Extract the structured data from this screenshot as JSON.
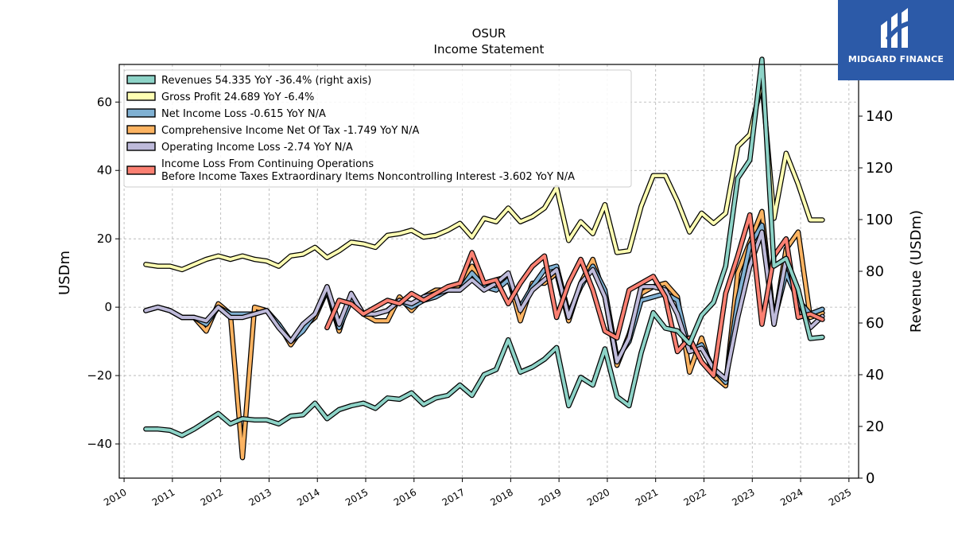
{
  "title": "OSUR",
  "subtitle": "Income Statement",
  "brand": {
    "name": "MIDGARD FINANCE",
    "logo_icon": "midgard-logo-icon",
    "color": "#2c5aa8"
  },
  "chart_data": {
    "type": "line",
    "ylabel": "USDm",
    "ylabel_right": "Revenue (USDm)",
    "xlim": [
      2009.9,
      2025.2
    ],
    "ylim": [
      -50,
      71
    ],
    "ylim_right": [
      0,
      160
    ],
    "x_ticks": [
      2010,
      2011,
      2012,
      2013,
      2014,
      2015,
      2016,
      2017,
      2018,
      2019,
      2020,
      2021,
      2022,
      2023,
      2024,
      2025
    ],
    "x_tick_labels": [
      "2010",
      "2011",
      "2012",
      "2013",
      "2014",
      "2015",
      "2016",
      "2017",
      "2018",
      "2019",
      "2020",
      "2021",
      "2022",
      "2023",
      "2024",
      "2025"
    ],
    "y_ticks": [
      -40,
      -20,
      0,
      20,
      40,
      60
    ],
    "y_tick_labels": [
      "−40",
      "−20",
      "0",
      "20",
      "40",
      "60"
    ],
    "y_ticks_right": [
      0,
      20,
      40,
      60,
      80,
      100,
      120,
      140
    ],
    "y_tick_labels_right": [
      "0",
      "20",
      "40",
      "60",
      "80",
      "100",
      "120",
      "140"
    ],
    "grid": true,
    "legend_position": "top-left",
    "x": [
      2010.45,
      2010.7,
      2010.95,
      2011.2,
      2011.45,
      2011.7,
      2011.95,
      2012.2,
      2012.45,
      2012.7,
      2012.95,
      2013.2,
      2013.45,
      2013.7,
      2013.95,
      2014.2,
      2014.45,
      2014.7,
      2014.95,
      2015.2,
      2015.45,
      2015.7,
      2015.95,
      2016.2,
      2016.45,
      2016.7,
      2016.95,
      2017.2,
      2017.45,
      2017.7,
      2017.95,
      2018.2,
      2018.45,
      2018.7,
      2018.95,
      2019.2,
      2019.45,
      2019.7,
      2019.95,
      2020.2,
      2020.45,
      2020.7,
      2020.95,
      2021.2,
      2021.45,
      2021.7,
      2021.95,
      2022.2,
      2022.45,
      2022.7,
      2022.95,
      2023.2,
      2023.45,
      2023.7,
      2023.95,
      2024.2,
      2024.45
    ],
    "series": [
      {
        "name": "Revenues  54.335 YoY -36.4% (right axis)",
        "axis": "right",
        "color": "#8dd3c7",
        "values": [
          19,
          19,
          18.5,
          16.5,
          19,
          22,
          25,
          21,
          23,
          22.5,
          22.5,
          21,
          24,
          24.5,
          29,
          23,
          26.5,
          28,
          29,
          27,
          31,
          30.5,
          33,
          28.5,
          31,
          32,
          36,
          32,
          40,
          42,
          53.5,
          41,
          43,
          46,
          50.5,
          28,
          39,
          36,
          50,
          31.5,
          28,
          48.5,
          64,
          58,
          57,
          52,
          63,
          68,
          82,
          116,
          123,
          162,
          82,
          85,
          73,
          54,
          54.5
        ]
      },
      {
        "name": "Gross Profit  24.689 YoY -6.4%",
        "axis": "left",
        "color": "#ffffb3",
        "values": [
          12.5,
          12,
          12,
          11,
          12.5,
          14,
          15,
          14,
          15,
          14,
          13.5,
          12,
          15,
          15.5,
          17.5,
          14.5,
          16.5,
          19,
          18.5,
          17.5,
          21,
          21.5,
          22.5,
          20.5,
          21,
          22.5,
          24.5,
          20.5,
          26,
          25,
          29,
          25,
          26.5,
          29,
          35,
          19.5,
          25,
          21.5,
          30,
          16,
          16.5,
          29.5,
          38.5,
          38.5,
          31,
          22,
          27.5,
          24.5,
          27.5,
          47,
          50.5,
          66,
          26,
          45,
          36,
          25.5,
          25.5
        ]
      },
      {
        "name": "Net Income Loss  -0.615 YoY N/A",
        "axis": "left",
        "color": "#80b1d3",
        "values": [
          -1,
          0,
          -1,
          -3,
          -3,
          -5,
          0,
          -2,
          -2,
          -2,
          -1,
          -5,
          -10,
          -7,
          -2,
          5,
          -6,
          2,
          -2,
          -2,
          -1,
          2,
          0,
          2,
          3,
          5,
          5,
          10,
          6,
          5,
          8,
          0,
          6,
          11,
          12,
          -2,
          6,
          12,
          5,
          -15,
          -10,
          2,
          3,
          4,
          2,
          -13,
          -11,
          -18,
          -22,
          2,
          18,
          24,
          -4,
          10,
          2,
          -2,
          -0.6
        ]
      },
      {
        "name": "Comprehensive Income Net Of Tax  -1.749 YoY N/A",
        "axis": "left",
        "color": "#fdb462",
        "values": [
          -1,
          0,
          -1,
          -3,
          -3,
          -7,
          1,
          -2,
          -44,
          0,
          -1,
          -5,
          -11,
          -6,
          -3,
          5,
          -7,
          4,
          -2,
          -4,
          -4,
          3,
          -1,
          3,
          5,
          5,
          6,
          12,
          6,
          8,
          9,
          -4,
          7,
          7,
          10,
          -4,
          7,
          14,
          3,
          -17,
          -8,
          4,
          6,
          7,
          3,
          -19,
          -9,
          -20,
          -23,
          10,
          19,
          28,
          -5,
          17,
          22,
          -3,
          -1.7
        ]
      },
      {
        "name": "Operating Income Loss  -2.74 YoY N/A",
        "axis": "left",
        "color": "#bebada",
        "values": [
          -1,
          0,
          -1,
          -3,
          -3,
          -4,
          0,
          -3,
          -3,
          -2,
          -1,
          -6,
          -10,
          -5,
          -2,
          6,
          -5,
          4,
          -2,
          -2,
          -1,
          2,
          1,
          3,
          4,
          5,
          5,
          8,
          5,
          7,
          10,
          -1,
          5,
          8,
          11,
          -3,
          7,
          11,
          3,
          -16,
          -9,
          6,
          6,
          5,
          -2,
          -13,
          -12,
          -18,
          -21,
          -3,
          12,
          22,
          -5,
          14,
          2,
          -6,
          -2.7
        ]
      },
      {
        "name": "Income Loss From Continuing Operations\nBefore Income Taxes Extraordinary Items Noncontrolling Interest  -3.602 YoY N/A",
        "axis": "left",
        "color": "#fb8072",
        "values": [
          null,
          null,
          null,
          null,
          null,
          null,
          null,
          null,
          null,
          null,
          null,
          null,
          null,
          null,
          null,
          -6,
          2,
          1,
          -2,
          0,
          2,
          1,
          4,
          2,
          4,
          6,
          7,
          16,
          7,
          8,
          1,
          7,
          12,
          15,
          -3,
          7,
          14,
          5,
          -7,
          -9,
          5,
          7,
          9,
          3,
          -13,
          -9,
          -16,
          -20,
          4,
          15,
          27,
          -5,
          15,
          20,
          -3,
          -2,
          -3.6
        ]
      }
    ]
  }
}
